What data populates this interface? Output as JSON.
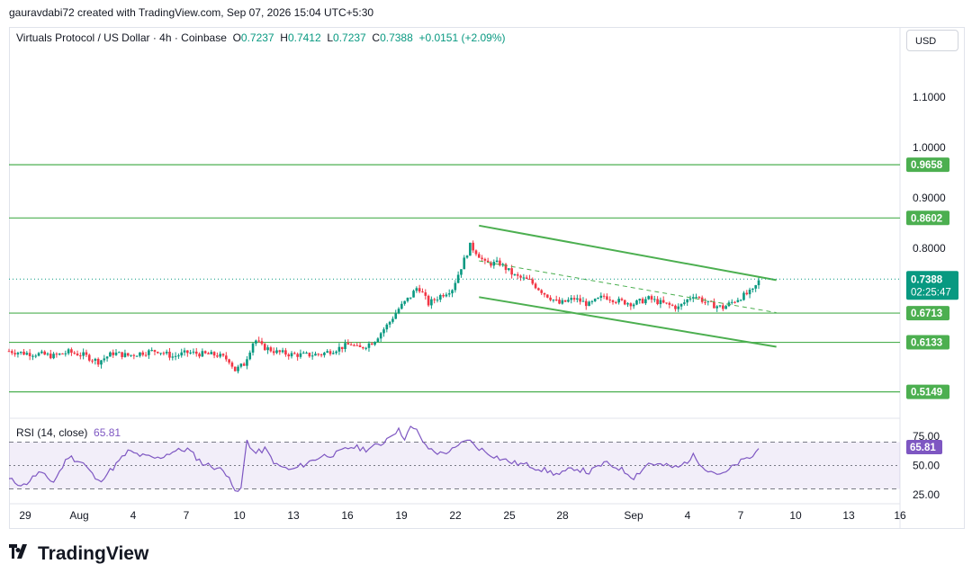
{
  "header": {
    "attribution": "gauravdabi72 created with TradingView.com, Sep 07, 2026 15:04 UTC+5:30"
  },
  "legend": {
    "symbol": "Virtuals Protocol / US Dollar · 4h · Coinbase",
    "o_label": "O",
    "o_value": "0.7237",
    "h_label": "H",
    "h_value": "0.7412",
    "l_label": "L",
    "l_value": "0.7237",
    "c_label": "C",
    "c_value": "0.7388",
    "change": "+0.0151 (+2.09%)"
  },
  "currency_button": "USD",
  "rsi": {
    "label": "RSI (14, close)",
    "value": "65.81"
  },
  "footer": {
    "brand": "TradingView"
  },
  "colors": {
    "up": "#089981",
    "down": "#f23645",
    "level": "#4caf50",
    "rsi": "#7e57c2",
    "axis_text": "#131722"
  },
  "chart_data": [
    {
      "type": "candlestick",
      "title": "Virtuals Protocol / US Dollar · 4h · Coinbase",
      "x_ticks": [
        "29",
        "Aug",
        "4",
        "7",
        "10",
        "13",
        "16",
        "19",
        "22",
        "25",
        "28",
        "Sep",
        "4",
        "7",
        "10",
        "13",
        "16"
      ],
      "y_ticks": [
        "1.1000",
        "1.0000",
        "0.9000",
        "0.8000"
      ],
      "ylim": [
        0.5,
        1.16
      ],
      "last_price": "0.7388",
      "countdown": "02:25:47",
      "horizontal_levels": [
        "0.9658",
        "0.8602",
        "0.6713",
        "0.6133",
        "0.5149"
      ],
      "descending_channel": {
        "upper": [
          [
            "25 Aug",
            0.845
          ],
          [
            "7 Sep",
            0.743
          ]
        ],
        "lower": [
          [
            "25 Aug",
            0.703
          ],
          [
            "7 Sep",
            0.61
          ]
        ],
        "midline": [
          [
            "25 Aug",
            0.775
          ],
          [
            "7 Sep",
            0.678
          ]
        ]
      },
      "close_path_keypoints": [
        [
          0,
          0.596
        ],
        [
          10,
          0.592
        ],
        [
          20,
          0.59
        ],
        [
          30,
          0.586
        ],
        [
          40,
          0.594
        ],
        [
          50,
          0.588
        ],
        [
          60,
          0.575
        ],
        [
          70,
          0.592
        ],
        [
          80,
          0.587
        ],
        [
          90,
          0.593
        ],
        [
          100,
          0.597
        ],
        [
          110,
          0.585
        ],
        [
          120,
          0.593
        ],
        [
          130,
          0.59
        ],
        [
          140,
          0.588
        ],
        [
          148,
          0.578
        ],
        [
          152,
          0.558
        ],
        [
          158,
          0.57
        ],
        [
          165,
          0.62
        ],
        [
          170,
          0.605
        ],
        [
          180,
          0.594
        ],
        [
          190,
          0.589
        ],
        [
          200,
          0.588
        ],
        [
          210,
          0.59
        ],
        [
          220,
          0.6
        ],
        [
          230,
          0.61
        ],
        [
          235,
          0.6
        ],
        [
          245,
          0.615
        ],
        [
          255,
          0.65
        ],
        [
          262,
          0.68
        ],
        [
          270,
          0.705
        ],
        [
          275,
          0.725
        ],
        [
          282,
          0.69
        ],
        [
          290,
          0.706
        ],
        [
          298,
          0.72
        ],
        [
          305,
          0.77
        ],
        [
          310,
          0.805
        ],
        [
          315,
          0.79
        ],
        [
          320,
          0.77
        ],
        [
          330,
          0.77
        ],
        [
          340,
          0.745
        ],
        [
          350,
          0.735
        ],
        [
          360,
          0.71
        ],
        [
          370,
          0.69
        ],
        [
          380,
          0.7
        ],
        [
          390,
          0.688
        ],
        [
          400,
          0.705
        ],
        [
          410,
          0.695
        ],
        [
          420,
          0.69
        ],
        [
          430,
          0.7
        ],
        [
          440,
          0.69
        ],
        [
          450,
          0.682
        ],
        [
          460,
          0.708
        ],
        [
          470,
          0.69
        ],
        [
          480,
          0.682
        ],
        [
          490,
          0.7
        ],
        [
          500,
          0.715
        ],
        [
          505,
          0.739
        ]
      ],
      "x_index_range": [
        0,
        599
      ]
    },
    {
      "type": "line",
      "name": "RSI (14, close)",
      "y_ticks": [
        "75.00",
        "50.00",
        "25.00"
      ],
      "bands": [
        70,
        50,
        30
      ],
      "ylim": [
        20,
        90
      ],
      "last_value": "65.81",
      "keypoints": [
        [
          0,
          38
        ],
        [
          10,
          33
        ],
        [
          20,
          44
        ],
        [
          30,
          36
        ],
        [
          40,
          58
        ],
        [
          50,
          52
        ],
        [
          60,
          36
        ],
        [
          70,
          48
        ],
        [
          80,
          62
        ],
        [
          90,
          58
        ],
        [
          100,
          56
        ],
        [
          110,
          62
        ],
        [
          120,
          64
        ],
        [
          130,
          52
        ],
        [
          140,
          48
        ],
        [
          148,
          42
        ],
        [
          152,
          26
        ],
        [
          156,
          30
        ],
        [
          160,
          72
        ],
        [
          165,
          60
        ],
        [
          172,
          64
        ],
        [
          180,
          50
        ],
        [
          190,
          46
        ],
        [
          200,
          52
        ],
        [
          210,
          58
        ],
        [
          220,
          60
        ],
        [
          230,
          66
        ],
        [
          240,
          64
        ],
        [
          250,
          68
        ],
        [
          258,
          78
        ],
        [
          262,
          80
        ],
        [
          266,
          74
        ],
        [
          270,
          82
        ],
        [
          275,
          79
        ],
        [
          280,
          66
        ],
        [
          290,
          60
        ],
        [
          300,
          64
        ],
        [
          308,
          73
        ],
        [
          312,
          68
        ],
        [
          320,
          62
        ],
        [
          330,
          56
        ],
        [
          340,
          52
        ],
        [
          350,
          50
        ],
        [
          360,
          46
        ],
        [
          370,
          42
        ],
        [
          380,
          48
        ],
        [
          390,
          44
        ],
        [
          400,
          52
        ],
        [
          410,
          48
        ],
        [
          420,
          40
        ],
        [
          430,
          52
        ],
        [
          440,
          50
        ],
        [
          450,
          48
        ],
        [
          460,
          58
        ],
        [
          470,
          46
        ],
        [
          480,
          42
        ],
        [
          490,
          52
        ],
        [
          500,
          58
        ],
        [
          505,
          65.81
        ]
      ]
    }
  ]
}
